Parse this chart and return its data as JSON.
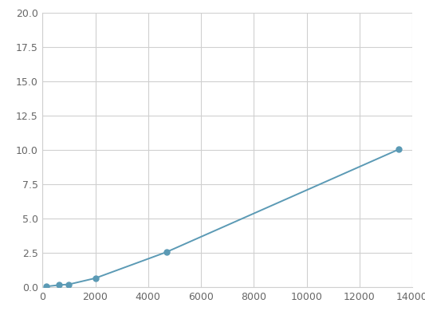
{
  "x": [
    156,
    625,
    1000,
    2000,
    4688,
    13500
  ],
  "y": [
    0.05,
    0.15,
    0.2,
    0.65,
    2.55,
    10.05
  ],
  "line_color": "#5b9ab5",
  "marker_color": "#5b9ab5",
  "marker_size": 5,
  "xlim": [
    0,
    14000
  ],
  "ylim": [
    0,
    20.0
  ],
  "xticks": [
    0,
    2000,
    4000,
    6000,
    8000,
    10000,
    12000,
    14000
  ],
  "yticks": [
    0.0,
    2.5,
    5.0,
    7.5,
    10.0,
    12.5,
    15.0,
    17.5,
    20.0
  ],
  "grid_color": "#d0d0d0",
  "background_color": "#ffffff",
  "figure_background": "#ffffff",
  "tick_label_color": "#666666",
  "tick_label_size": 9
}
